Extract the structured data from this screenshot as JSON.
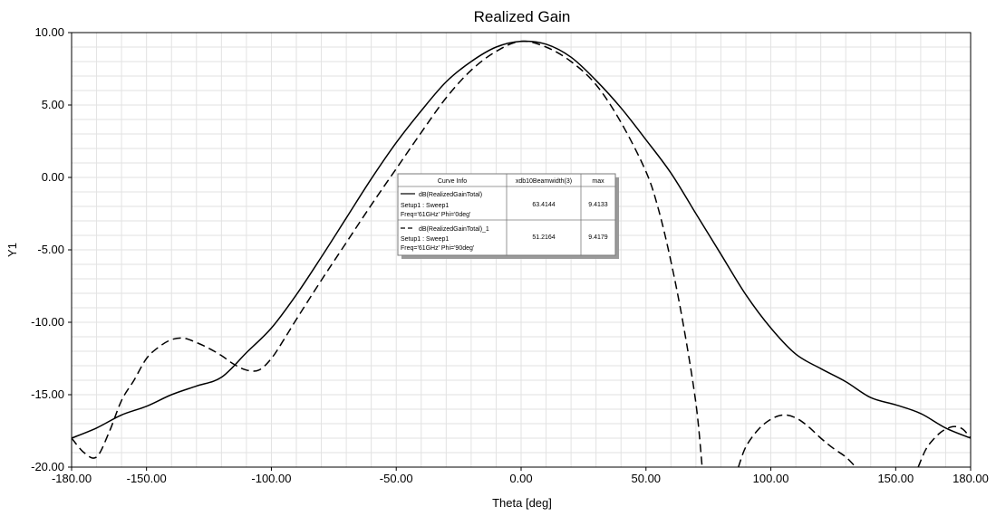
{
  "chart_data": {
    "type": "line",
    "title": "Realized Gain",
    "xlabel": "Theta [deg]",
    "ylabel": "Y1",
    "xlim": [
      -180,
      180
    ],
    "ylim": [
      -20,
      10
    ],
    "x_ticks": [
      "-180.00",
      "-150.00",
      "-100.00",
      "-50.00",
      "0.00",
      "50.00",
      "100.00",
      "150.00",
      "180.00"
    ],
    "x_tick_values": [
      -180,
      -150,
      -100,
      -50,
      0,
      50,
      100,
      150,
      180
    ],
    "y_ticks": [
      "10.00",
      "5.00",
      "0.00",
      "-5.00",
      "-10.00",
      "-15.00",
      "-20.00"
    ],
    "y_tick_values": [
      10,
      5,
      0,
      -5,
      -10,
      -15,
      -20
    ],
    "grid": true,
    "series": [
      {
        "name": "dB(RealizedGainTotal)",
        "style": "solid",
        "x": [
          -180,
          -170,
          -160,
          -150,
          -140,
          -130,
          -120,
          -110,
          -100,
          -90,
          -80,
          -70,
          -60,
          -50,
          -40,
          -30,
          -20,
          -10,
          0,
          10,
          20,
          30,
          40,
          50,
          60,
          70,
          80,
          90,
          100,
          110,
          120,
          130,
          140,
          150,
          160,
          170,
          180
        ],
        "y": [
          -18.0,
          -17.3,
          -16.4,
          -15.8,
          -15.0,
          -14.4,
          -13.8,
          -12.1,
          -10.4,
          -8.1,
          -5.5,
          -2.8,
          -0.1,
          2.4,
          4.6,
          6.6,
          8.0,
          9.0,
          9.4,
          9.2,
          8.3,
          6.7,
          4.8,
          2.6,
          0.3,
          -2.5,
          -5.3,
          -8.1,
          -10.4,
          -12.2,
          -13.2,
          -14.1,
          -15.2,
          -15.7,
          -16.3,
          -17.3,
          -18.0
        ]
      },
      {
        "name": "dB(RealizedGainTotal)_1",
        "style": "dashed",
        "x": [
          -180,
          -175,
          -170,
          -165,
          -160,
          -155,
          -150,
          -145,
          -140,
          -135,
          -130,
          -125,
          -120,
          -115,
          -110,
          -105,
          -100,
          -95,
          -90,
          -80,
          -70,
          -60,
          -50,
          -40,
          -30,
          -20,
          -10,
          0,
          10,
          20,
          30,
          40,
          50,
          55,
          60,
          65,
          70,
          72.5
        ],
        "y": [
          -18.0,
          -19.0,
          -19.3,
          -17.6,
          -15.4,
          -14.0,
          -12.5,
          -11.7,
          -11.2,
          -11.1,
          -11.4,
          -11.8,
          -12.3,
          -12.9,
          -13.3,
          -13.3,
          -12.5,
          -11.2,
          -9.8,
          -7.1,
          -4.5,
          -1.9,
          0.6,
          3.1,
          5.5,
          7.4,
          8.7,
          9.4,
          9.0,
          8.0,
          6.4,
          3.8,
          0.4,
          -2.2,
          -5.8,
          -10.2,
          -15.6,
          -20.0
        ]
      },
      {
        "name": "dB(RealizedGainTotal)_1",
        "style": "dashed",
        "x": [
          87,
          90,
          95,
          100,
          105,
          110,
          115,
          120,
          125,
          130,
          134
        ],
        "y": [
          -20.0,
          -18.6,
          -17.4,
          -16.7,
          -16.4,
          -16.6,
          -17.2,
          -18.0,
          -18.7,
          -19.3,
          -20.0
        ]
      },
      {
        "name": "dB(RealizedGainTotal)_1",
        "style": "dashed",
        "x": [
          159,
          162,
          165,
          168,
          171,
          174,
          177,
          180
        ],
        "y": [
          -20.0,
          -18.8,
          -18.1,
          -17.6,
          -17.3,
          -17.2,
          -17.4,
          -18.0
        ]
      }
    ],
    "legend": {
      "placement": "center",
      "headers": [
        "Curve Info",
        "xdb10Beamwidth(3)",
        "max"
      ],
      "rows": [
        {
          "line_style": "solid",
          "name": "dB(RealizedGainTotal)",
          "setup": "Setup1 : Sweep1",
          "freq": "Freq='61GHz' Phi='0deg'",
          "beamwidth": "63.4144",
          "max": "9.4133"
        },
        {
          "line_style": "dashed",
          "name": "dB(RealizedGainTotal)_1",
          "setup": "Setup1 : Sweep1",
          "freq": "Freq='61GHz' Phi='90deg'",
          "beamwidth": "51.2164",
          "max": "9.4179"
        }
      ]
    }
  }
}
